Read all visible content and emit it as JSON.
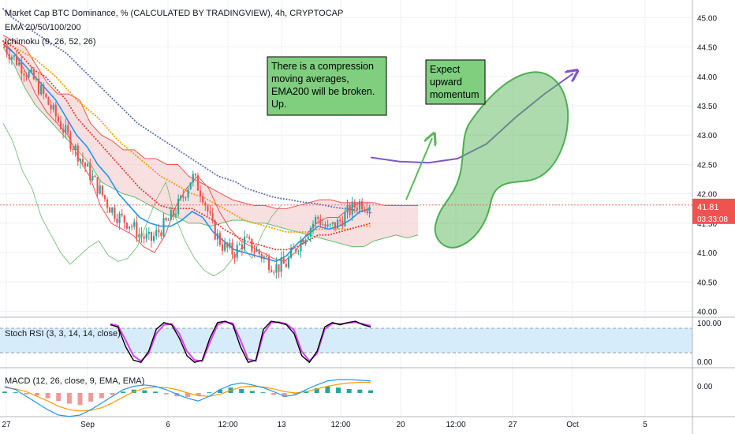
{
  "header": {
    "title": "Market Cap BTC Dominance, % (CALCULATED BY TRADINGVIEW), 4h, CRYPTOCAP",
    "ema": "EMA 20/50/100/200",
    "ichimoku": "Ichimoku (9, 26, 52, 26)"
  },
  "price_tag": {
    "value": "41.81",
    "countdown": "03:33:08"
  },
  "annotations": [
    {
      "lines": [
        "There is a compression",
        "moving averages,",
        "EMA200 will be broken.",
        "Up."
      ]
    },
    {
      "lines": [
        "Expect",
        "upward",
        "momentum"
      ]
    }
  ],
  "colors": {
    "up": "#26a69a",
    "down": "#ef5350",
    "ema20": "#2196f3",
    "ema50": "#e53935",
    "ema100": "#ff9800",
    "ema200": "#5c6bc0",
    "kumo": "#f3c6c6",
    "note_bg": "#7fcf7f",
    "projection": "#5cb85c",
    "path": "#7e57c2",
    "rsi_k": "#000000",
    "rsi_d": "#e040fb",
    "rsi_band": "#d7ecfb",
    "price_tag": "#ef5350"
  },
  "chart_data": [
    {
      "type": "candlestick",
      "ylim": [
        39.9,
        45.3
      ],
      "y_ticks": [
        "40.00",
        "40.50",
        "41.00",
        "41.50",
        "42.00",
        "42.50",
        "43.00",
        "43.50",
        "44.00",
        "44.50",
        "45.00"
      ],
      "x_tick_labels": [
        "27",
        "Sep",
        "6",
        "12:00",
        "13",
        "12:00",
        "20",
        "12:00",
        "27",
        "Oct",
        "5"
      ],
      "last_price": 41.81,
      "close_path": [
        44.5,
        44.3,
        44.1,
        43.9,
        43.6,
        43.3,
        43.0,
        42.7,
        42.4,
        42.1,
        41.8,
        41.6,
        41.5,
        41.3,
        41.2,
        41.4,
        41.6,
        41.9,
        42.3,
        42.0,
        41.4,
        41.1,
        41.0,
        41.2,
        41.05,
        40.9,
        40.75,
        40.8,
        41.1,
        41.35,
        41.6,
        41.4,
        41.5,
        41.7,
        41.85,
        41.85
      ],
      "ema20": [
        44.55,
        44.4,
        44.2,
        44.0,
        43.8,
        43.6,
        43.3,
        43.0,
        42.8,
        42.5,
        42.3,
        42.0,
        41.8,
        41.6,
        41.5,
        41.45,
        41.45,
        41.55,
        41.7,
        41.6,
        41.35,
        41.2,
        41.05,
        41.0,
        40.95,
        40.9,
        40.85,
        40.95,
        41.15,
        41.3,
        41.45,
        41.4,
        41.45,
        41.55,
        41.7,
        41.75
      ],
      "ema50": [
        44.6,
        44.5,
        44.3,
        44.1,
        44.0,
        43.8,
        43.6,
        43.3,
        43.1,
        42.9,
        42.7,
        42.5,
        42.3,
        42.1,
        41.95,
        41.8,
        41.75,
        41.75,
        41.75,
        41.65,
        41.55,
        41.4,
        41.3,
        41.2,
        41.15,
        41.1,
        41.05,
        41.05,
        41.1,
        41.2,
        41.3,
        41.3,
        41.35,
        41.4,
        41.45,
        41.5
      ],
      "ema100": [
        44.6,
        44.5,
        44.4,
        44.3,
        44.15,
        44.0,
        43.8,
        43.6,
        43.45,
        43.3,
        43.1,
        42.9,
        42.75,
        42.6,
        42.45,
        42.3,
        42.2,
        42.1,
        42.0,
        41.95,
        41.85,
        41.75,
        41.65,
        41.55,
        41.5,
        41.45,
        41.4,
        41.35,
        41.35,
        41.35,
        41.4,
        41.4,
        41.4,
        41.4,
        41.45,
        41.45
      ],
      "ema200": [
        45.15,
        45.0,
        44.9,
        44.8,
        44.7,
        44.6,
        44.5,
        44.4,
        44.25,
        44.1,
        43.95,
        43.8,
        43.65,
        43.5,
        43.35,
        43.2,
        43.1,
        43.0,
        42.9,
        42.8,
        42.7,
        42.6,
        42.5,
        42.4,
        42.3,
        42.25,
        42.2,
        42.1,
        42.05,
        42.0,
        41.95,
        41.92,
        41.9,
        41.87,
        41.85,
        41.83,
        41.8,
        41.77,
        41.75,
        41.73,
        41.7,
        41.68
      ],
      "cloud_top": [
        44.7,
        44.6,
        44.5,
        44.2,
        43.9,
        43.7,
        43.7,
        43.6,
        43.2,
        43.0,
        42.9,
        42.75,
        42.75,
        42.6,
        42.6,
        42.5,
        42.5,
        42.3,
        42.2,
        42.1,
        42.0,
        41.9,
        41.85,
        41.8,
        41.8,
        41.75,
        41.75,
        41.8,
        41.85,
        41.9,
        41.9,
        41.85,
        41.85,
        41.85,
        41.85,
        41.8,
        41.8,
        41.8,
        41.8
      ],
      "cloud_bottom": [
        44.5,
        44.2,
        43.8,
        43.5,
        43.3,
        43.1,
        42.9,
        42.7,
        42.5,
        42.2,
        42.1,
        42.0,
        41.95,
        41.85,
        41.75,
        41.65,
        41.6,
        41.5,
        41.5,
        41.45,
        41.5,
        41.55,
        41.55,
        41.5,
        41.5,
        41.45,
        41.4,
        41.35,
        41.3,
        41.25,
        41.2,
        41.15,
        41.1,
        41.1,
        41.2,
        41.25,
        41.3,
        41.25,
        41.3
      ],
      "tenkan_kijun": [
        44.6,
        44.4,
        44.1,
        43.7,
        43.4,
        43.2,
        43.0,
        42.6,
        42.3,
        41.8,
        41.5,
        41.4,
        41.3,
        41.1,
        41.0,
        41.3,
        41.8,
        42.1,
        42.3,
        42.1,
        41.7,
        41.4,
        41.2,
        41.1,
        41.0,
        40.9,
        40.85,
        41.0,
        41.3,
        41.5,
        41.6,
        41.6,
        41.75,
        41.85,
        41.85
      ],
      "lagging_span": [
        43.2,
        42.9,
        42.4,
        42.1,
        41.6,
        41.3,
        41.0,
        40.8,
        40.95,
        41.1,
        41.2,
        40.95,
        40.85,
        40.9,
        41.1,
        41.5,
        41.9,
        42.2,
        41.6,
        41.2,
        40.9,
        40.7,
        40.6,
        40.7,
        40.9,
        41.1,
        40.9,
        41.3,
        41.6,
        41.8
      ],
      "projected_path": [
        42.62,
        42.55,
        42.53,
        42.6,
        42.85,
        43.3,
        43.7,
        44.05
      ],
      "projection_arrow": [
        [
          41.9
        ],
        [
          42.95
        ]
      ]
    },
    {
      "type": "line",
      "title": "Stoch RSI (3, 3, 14, 14, close)",
      "ylim": [
        0,
        100
      ],
      "y_ticks": [
        "100.00",
        "0.00"
      ],
      "bands": [
        20,
        80
      ],
      "k": [
        90,
        85,
        40,
        10,
        5,
        30,
        80,
        95,
        90,
        60,
        20,
        5,
        10,
        60,
        95,
        98,
        90,
        40,
        5,
        10,
        80,
        98,
        95,
        90,
        70,
        20,
        5,
        30,
        85,
        95,
        90,
        95,
        98,
        90,
        85
      ],
      "d": [
        92,
        88,
        55,
        20,
        8,
        25,
        70,
        90,
        92,
        70,
        30,
        10,
        8,
        50,
        90,
        97,
        93,
        55,
        12,
        8,
        70,
        95,
        96,
        92,
        78,
        30,
        8,
        25,
        80,
        93,
        92,
        94,
        96,
        92,
        88
      ]
    },
    {
      "type": "bar",
      "title": "MACD (12, 26, close, 9, EMA, EMA)",
      "ylim": [
        -0.33,
        0.33
      ],
      "y_ticks": [
        "0.00"
      ],
      "histogram": [
        0.02,
        0.01,
        -0.02,
        -0.04,
        -0.08,
        -0.12,
        -0.16,
        -0.18,
        -0.13,
        -0.08,
        -0.03,
        0.02,
        0.05,
        0.04,
        0.02,
        -0.02,
        -0.05,
        -0.06,
        -0.04,
        0.01,
        0.05,
        0.08,
        0.06,
        0.03,
        0.01,
        -0.03,
        -0.06,
        -0.02,
        0.03,
        0.07,
        0.1,
        0.08,
        0.06,
        0.05,
        0.04
      ],
      "macd": [
        0.1,
        0.05,
        -0.05,
        -0.15,
        -0.25,
        -0.33,
        -0.35,
        -0.33,
        -0.25,
        -0.15,
        -0.05,
        0.05,
        0.1,
        0.12,
        0.1,
        0.05,
        -0.02,
        -0.08,
        -0.12,
        -0.05,
        0.05,
        0.12,
        0.15,
        0.12,
        0.08,
        0.02,
        -0.05,
        -0.03,
        0.05,
        0.12,
        0.18,
        0.2,
        0.2,
        0.19,
        0.18
      ],
      "signal": [
        0.08,
        0.06,
        0.02,
        -0.05,
        -0.12,
        -0.2,
        -0.25,
        -0.27,
        -0.26,
        -0.22,
        -0.15,
        -0.06,
        0.02,
        0.07,
        0.09,
        0.08,
        0.05,
        0.0,
        -0.04,
        -0.05,
        -0.02,
        0.04,
        0.09,
        0.1,
        0.09,
        0.06,
        0.02,
        0.0,
        0.02,
        0.06,
        0.1,
        0.13,
        0.15,
        0.16,
        0.16
      ]
    }
  ]
}
